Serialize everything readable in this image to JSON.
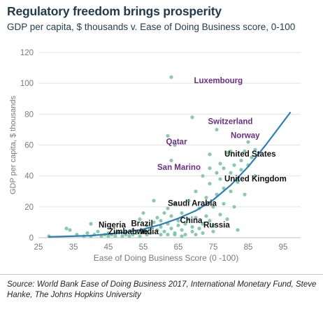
{
  "title": "Regulatory freedom brings prosperity",
  "subtitle": "GDP per capita, $ thousands v. Ease of Doing Business score, 0-100",
  "source": "Source: World Bank Ease of Doing Business 2017, International Monetary Fund, Steve Hanke, The Johns Hopkins University",
  "colors": {
    "point": "#7cc4a4",
    "trendline": "#2e7fb8",
    "highlight_label": "#6b2d86",
    "label": "#111111",
    "axis_text": "#7a7a7a",
    "grid": "#e3e3e3"
  },
  "chart_data": {
    "type": "scatter",
    "title": "Regulatory freedom brings prosperity",
    "subtitle": "GDP per capita, $ thousands v. Ease of Doing Business score, 0-100",
    "xlabel": "Ease of Doing Business Score (0 -100)",
    "ylabel": "GDP per capita, $ thousands",
    "xlim": [
      25,
      100
    ],
    "ylim": [
      0,
      120
    ],
    "xticks": [
      25,
      35,
      45,
      55,
      65,
      75,
      85,
      95
    ],
    "yticks": [
      0,
      20,
      40,
      60,
      80,
      100,
      120
    ],
    "grid": "horizontal",
    "points": [
      {
        "x": 28,
        "y": 1
      },
      {
        "x": 33,
        "y": 6
      },
      {
        "x": 34,
        "y": 5
      },
      {
        "x": 36,
        "y": 2
      },
      {
        "x": 38,
        "y": 1
      },
      {
        "x": 39,
        "y": 3
      },
      {
        "x": 40,
        "y": 9
      },
      {
        "x": 40,
        "y": 1
      },
      {
        "x": 41,
        "y": 2
      },
      {
        "x": 42,
        "y": 4
      },
      {
        "x": 43,
        "y": 1
      },
      {
        "x": 44,
        "y": 2
      },
      {
        "x": 45,
        "y": 3
      },
      {
        "x": 45,
        "y": 1
      },
      {
        "x": 46,
        "y": 2
      },
      {
        "x": 47,
        "y": 3
      },
      {
        "x": 47,
        "y": 1
      },
      {
        "x": 48,
        "y": 4
      },
      {
        "x": 49,
        "y": 1
      },
      {
        "x": 50,
        "y": 2
      },
      {
        "x": 50,
        "y": 4
      },
      {
        "x": 51,
        "y": 1
      },
      {
        "x": 52,
        "y": 5
      },
      {
        "x": 52,
        "y": 2
      },
      {
        "x": 53,
        "y": 3
      },
      {
        "x": 54,
        "y": 1
      },
      {
        "x": 54,
        "y": 12
      },
      {
        "x": 55,
        "y": 4
      },
      {
        "x": 55,
        "y": 16
      },
      {
        "x": 56,
        "y": 2
      },
      {
        "x": 56,
        "y": 8
      },
      {
        "x": 57,
        "y": 6
      },
      {
        "x": 57,
        "y": 3
      },
      {
        "x": 58,
        "y": 24
      },
      {
        "x": 58,
        "y": 10
      },
      {
        "x": 59,
        "y": 5
      },
      {
        "x": 59,
        "y": 13
      },
      {
        "x": 60,
        "y": 2
      },
      {
        "x": 60,
        "y": 7
      },
      {
        "x": 60,
        "y": 11
      },
      {
        "x": 61,
        "y": 16
      },
      {
        "x": 61,
        "y": 4
      },
      {
        "x": 62,
        "y": 19
      },
      {
        "x": 62,
        "y": 9
      },
      {
        "x": 62,
        "y": 2
      },
      {
        "x": 63,
        "y": 14
      },
      {
        "x": 63,
        "y": 6
      },
      {
        "x": 64,
        "y": 3
      },
      {
        "x": 64,
        "y": 22
      },
      {
        "x": 65,
        "y": 11
      },
      {
        "x": 65,
        "y": 8
      },
      {
        "x": 66,
        "y": 5
      },
      {
        "x": 66,
        "y": 16
      },
      {
        "x": 67,
        "y": 9
      },
      {
        "x": 67,
        "y": 2
      },
      {
        "x": 68,
        "y": 12
      },
      {
        "x": 68,
        "y": 24
      },
      {
        "x": 69,
        "y": 7
      },
      {
        "x": 69,
        "y": 4
      },
      {
        "x": 70,
        "y": 13
      },
      {
        "x": 70,
        "y": 30
      },
      {
        "x": 71,
        "y": 6
      },
      {
        "x": 71,
        "y": 19
      },
      {
        "x": 72,
        "y": 9
      },
      {
        "x": 72,
        "y": 3
      },
      {
        "x": 72,
        "y": 40
      },
      {
        "x": 73,
        "y": 14
      },
      {
        "x": 73,
        "y": 26
      },
      {
        "x": 74,
        "y": 11
      },
      {
        "x": 74,
        "y": 35
      },
      {
        "x": 74,
        "y": 45
      },
      {
        "x": 75,
        "y": 20
      },
      {
        "x": 75,
        "y": 8
      },
      {
        "x": 76,
        "y": 28
      },
      {
        "x": 76,
        "y": 42
      },
      {
        "x": 77,
        "y": 15
      },
      {
        "x": 77,
        "y": 38
      },
      {
        "x": 77,
        "y": 48
      },
      {
        "x": 78,
        "y": 22
      },
      {
        "x": 78,
        "y": 32
      },
      {
        "x": 78,
        "y": 45
      },
      {
        "x": 79,
        "y": 12
      },
      {
        "x": 79,
        "y": 55
      },
      {
        "x": 80,
        "y": 56
      },
      {
        "x": 80,
        "y": 42
      },
      {
        "x": 80,
        "y": 30
      },
      {
        "x": 81,
        "y": 47
      },
      {
        "x": 81,
        "y": 20
      },
      {
        "x": 82,
        "y": 5
      },
      {
        "x": 82,
        "y": 38
      },
      {
        "x": 83,
        "y": 50
      },
      {
        "x": 83,
        "y": 44
      },
      {
        "x": 84,
        "y": 56
      },
      {
        "x": 84,
        "y": 28
      },
      {
        "x": 85,
        "y": 62
      },
      {
        "x": 85,
        "y": 47
      },
      {
        "x": 86,
        "y": 52
      },
      {
        "x": 87,
        "y": 40
      },
      {
        "x": 87,
        "y": 57
      },
      {
        "x": 64,
        "y": 2
      },
      {
        "x": 66,
        "y": 1
      },
      {
        "x": 70,
        "y": 2
      },
      {
        "x": 75,
        "y": 4
      },
      {
        "x": 63,
        "y": 104
      },
      {
        "x": 69,
        "y": 78
      },
      {
        "x": 76,
        "y": 70
      },
      {
        "x": 62,
        "y": 66
      },
      {
        "x": 64,
        "y": 60
      },
      {
        "x": 63,
        "y": 50
      },
      {
        "x": 74,
        "y": 54
      },
      {
        "x": 82,
        "y": 36
      }
    ],
    "labels": [
      {
        "text": "Luxembourg",
        "x": 69.5,
        "y": 100,
        "highlight": true
      },
      {
        "text": "Switzerland",
        "x": 73.5,
        "y": 73.5,
        "highlight": true
      },
      {
        "text": "Norway",
        "x": 80,
        "y": 64.5,
        "highlight": true
      },
      {
        "text": "Qatar",
        "x": 61.5,
        "y": 60.5,
        "highlight": true
      },
      {
        "text": "United States",
        "x": 78.2,
        "y": 52.5,
        "highlight": false
      },
      {
        "text": "San Marino",
        "x": 59,
        "y": 44,
        "highlight": true
      },
      {
        "text": "United Kingdom",
        "x": 78.2,
        "y": 36.5,
        "highlight": false
      },
      {
        "text": "Saudi Arabia",
        "x": 62,
        "y": 20.5,
        "highlight": false
      },
      {
        "text": "China",
        "x": 65.5,
        "y": 9.5,
        "highlight": false
      },
      {
        "text": "Russia",
        "x": 72.2,
        "y": 6.5,
        "highlight": false
      },
      {
        "text": "Nigeria",
        "x": 42.2,
        "y": 6.5,
        "highlight": false
      },
      {
        "text": "Brazil",
        "x": 51.5,
        "y": 7.5,
        "highlight": false
      },
      {
        "text": "Zimbabwe",
        "x": 45,
        "y": 2.3,
        "highlight": false
      },
      {
        "text": "India",
        "x": 54,
        "y": 2.3,
        "highlight": false
      }
    ],
    "trendline": [
      {
        "x": 28,
        "y": 0.5
      },
      {
        "x": 40,
        "y": 1.3
      },
      {
        "x": 50,
        "y": 3.5
      },
      {
        "x": 55,
        "y": 5.5
      },
      {
        "x": 60,
        "y": 8.5
      },
      {
        "x": 65,
        "y": 12.5
      },
      {
        "x": 70,
        "y": 17.5
      },
      {
        "x": 75,
        "y": 24.5
      },
      {
        "x": 80,
        "y": 34
      },
      {
        "x": 85,
        "y": 46
      },
      {
        "x": 90,
        "y": 60
      },
      {
        "x": 95,
        "y": 75
      },
      {
        "x": 97,
        "y": 81
      }
    ]
  }
}
